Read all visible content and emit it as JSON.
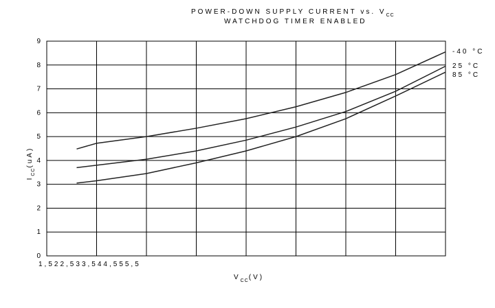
{
  "chart_data": {
    "type": "line",
    "title": "POWER-DOWN SUPPLY CURRENT vs. V",
    "title_subscript": "CC",
    "subtitle": "WATCHDOG TIMER ENABLED",
    "y_label": "I",
    "y_label_subscript": "CC",
    "y_label_unit": "(uA)",
    "x_label": "V",
    "x_label_subscript": "CC",
    "x_label_unit": "(V)",
    "x": [
      1.8,
      2,
      2.5,
      3,
      3.5,
      4,
      4.5,
      5,
      5.5
    ],
    "series": [
      {
        "name": "-40 °C",
        "color": "#222222",
        "values": [
          4.48,
          4.72,
          5.0,
          5.35,
          5.75,
          6.25,
          6.85,
          7.6,
          8.55
        ]
      },
      {
        "name": "25 °C",
        "color": "#222222",
        "values": [
          3.7,
          3.8,
          4.05,
          4.4,
          4.85,
          5.4,
          6.05,
          6.9,
          7.95
        ]
      },
      {
        "name": "85 °C",
        "color": "#222222",
        "values": [
          3.05,
          3.15,
          3.45,
          3.9,
          4.4,
          5.0,
          5.75,
          6.7,
          7.7
        ]
      }
    ],
    "xlim": [
      1.5,
      5.5
    ],
    "xticks": [
      {
        "value": 1.5,
        "label": "1,5"
      },
      2,
      {
        "value": 2.5,
        "label": "2,5"
      },
      3,
      {
        "value": 3.5,
        "label": "3,5"
      },
      4,
      {
        "value": 4.5,
        "label": "4,5"
      },
      5,
      {
        "value": 5.5,
        "label": "5,5"
      }
    ],
    "ylim": [
      0,
      9
    ],
    "yticks": [
      0,
      1,
      2,
      3,
      4,
      5,
      6,
      7,
      8,
      9
    ],
    "grid": true
  }
}
